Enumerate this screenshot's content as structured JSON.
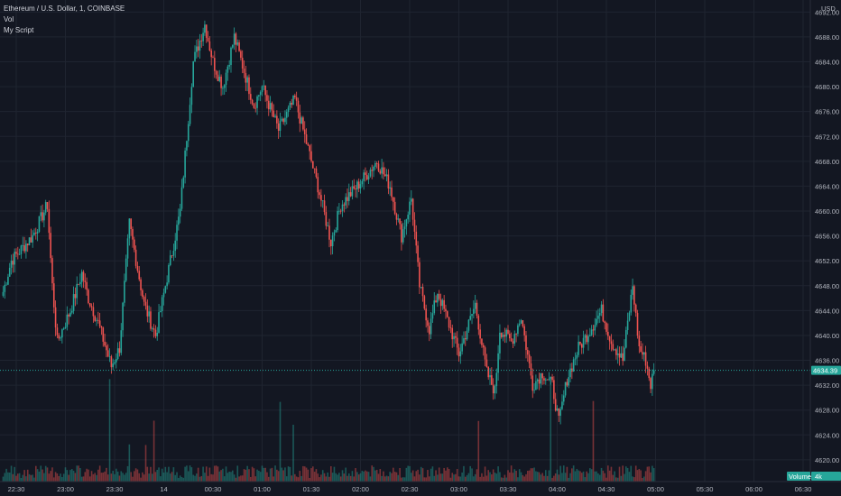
{
  "legend": {
    "symbol": "Ethereum / U.S. Dollar, 1, COINBASE",
    "vol": "Vol",
    "script": "My Script"
  },
  "currency": "USD",
  "volume_label": "Volume",
  "volume_value": "4k",
  "last_price_label": "4634.39",
  "colors": {
    "background": "#131722",
    "grid": "#1f2430",
    "up": "#26a69a",
    "down": "#ef5350",
    "text": "#b2b5be",
    "price_line": "#26a69a"
  },
  "chart_data": {
    "type": "candlestick",
    "y_ticks": [
      "4620.00",
      "4624.00",
      "4628.00",
      "4632.00",
      "4636.00",
      "4640.00",
      "4644.00",
      "4648.00",
      "4652.00",
      "4656.00",
      "4660.00",
      "4664.00",
      "4668.00",
      "4672.00",
      "4676.00",
      "4680.00",
      "4684.00",
      "4688.00",
      "4692.00"
    ],
    "y_range": [
      4616.5,
      4693.5
    ],
    "x_ticks": [
      "22:30",
      "23:00",
      "23:30",
      "14",
      "00:30",
      "01:00",
      "01:30",
      "02:00",
      "02:30",
      "03:00",
      "03:30",
      "04:00",
      "04:30",
      "05:00",
      "05:30",
      "06:00",
      "06:30"
    ],
    "interval_minutes": 1,
    "last_price": 4634.39,
    "grid": true,
    "key_points": [
      {
        "time": "22:22",
        "price": 4647
      },
      {
        "time": "22:27",
        "price": 4652
      },
      {
        "time": "22:40",
        "price": 4656
      },
      {
        "time": "22:49",
        "price": 4661
      },
      {
        "time": "22:52",
        "price": 4648
      },
      {
        "time": "22:55",
        "price": 4639
      },
      {
        "time": "23:03",
        "price": 4644
      },
      {
        "time": "23:10",
        "price": 4650
      },
      {
        "time": "23:14",
        "price": 4646
      },
      {
        "time": "23:20",
        "price": 4642
      },
      {
        "time": "23:28",
        "price": 4635
      },
      {
        "time": "23:33",
        "price": 4638
      },
      {
        "time": "23:39",
        "price": 4658
      },
      {
        "time": "23:48",
        "price": 4645
      },
      {
        "time": "23:55",
        "price": 4640
      },
      {
        "time": "00:10",
        "price": 4660
      },
      {
        "time": "00:18",
        "price": 4684
      },
      {
        "time": "00:25",
        "price": 4690
      },
      {
        "time": "00:30",
        "price": 4684
      },
      {
        "time": "00:36",
        "price": 4680
      },
      {
        "time": "00:43",
        "price": 4688
      },
      {
        "time": "00:55",
        "price": 4677
      },
      {
        "time": "01:00",
        "price": 4680
      },
      {
        "time": "01:10",
        "price": 4673
      },
      {
        "time": "01:20",
        "price": 4678
      },
      {
        "time": "01:34",
        "price": 4664
      },
      {
        "time": "01:42",
        "price": 4655
      },
      {
        "time": "01:48",
        "price": 4661
      },
      {
        "time": "01:58",
        "price": 4664
      },
      {
        "time": "02:10",
        "price": 4668
      },
      {
        "time": "02:18",
        "price": 4664
      },
      {
        "time": "02:25",
        "price": 4656
      },
      {
        "time": "02:31",
        "price": 4662
      },
      {
        "time": "02:36",
        "price": 4648
      },
      {
        "time": "02:42",
        "price": 4641
      },
      {
        "time": "02:47",
        "price": 4647
      },
      {
        "time": "02:55",
        "price": 4641
      },
      {
        "time": "03:00",
        "price": 4637
      },
      {
        "time": "03:10",
        "price": 4645
      },
      {
        "time": "03:17",
        "price": 4634
      },
      {
        "time": "03:22",
        "price": 4631
      },
      {
        "time": "03:25",
        "price": 4641
      },
      {
        "time": "03:32",
        "price": 4639
      },
      {
        "time": "03:38",
        "price": 4643
      },
      {
        "time": "03:45",
        "price": 4632
      },
      {
        "time": "03:51",
        "price": 4634
      },
      {
        "time": "03:57",
        "price": 4632
      },
      {
        "time": "04:01",
        "price": 4626
      },
      {
        "time": "04:06",
        "price": 4633
      },
      {
        "time": "04:13",
        "price": 4638
      },
      {
        "time": "04:18",
        "price": 4640
      },
      {
        "time": "04:27",
        "price": 4644
      },
      {
        "time": "04:33",
        "price": 4639
      },
      {
        "time": "04:40",
        "price": 4636
      },
      {
        "time": "04:46",
        "price": 4648
      },
      {
        "time": "04:50",
        "price": 4638
      },
      {
        "time": "04:54",
        "price": 4636
      },
      {
        "time": "04:57",
        "price": 4632
      },
      {
        "time": "04:59",
        "price": 4634.39
      }
    ]
  }
}
